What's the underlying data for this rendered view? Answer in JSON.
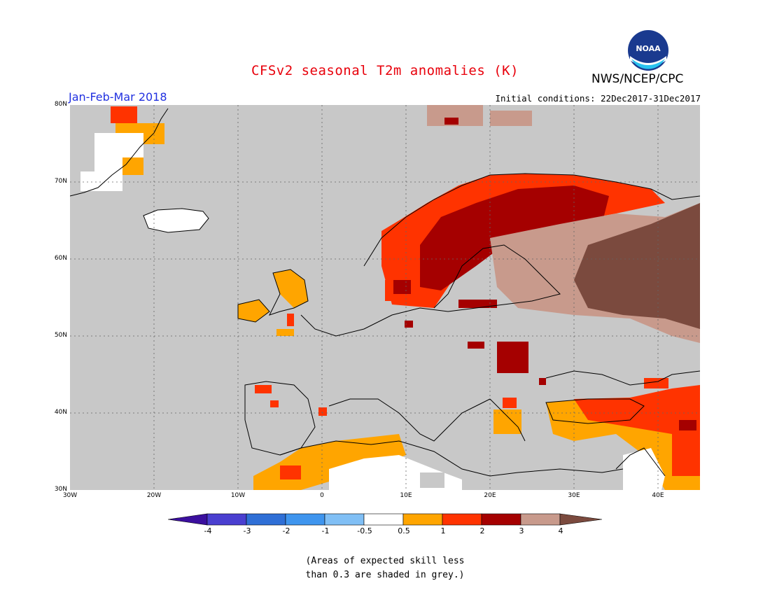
{
  "title": "CFSv2 seasonal T2m anomalies (K)",
  "organization": "NWS/NCEP/CPC",
  "logo_text": "NOAA",
  "period": "Jan-Feb-Mar 2018",
  "initial_conditions": "Initial conditions: 22Dec2017-31Dec2017",
  "lat_labels": [
    "80N",
    "70N",
    "60N",
    "50N",
    "40N",
    "30N"
  ],
  "lon_labels": [
    "30W",
    "20W",
    "10W",
    "0",
    "10E",
    "20E",
    "30E",
    "40E"
  ],
  "colorbar": {
    "labels": [
      "-4",
      "-3",
      "-2",
      "-1",
      "-0.5",
      "0.5",
      "1",
      "2",
      "3",
      "4"
    ],
    "colors": [
      "#3b0f9e",
      "#4a3fd0",
      "#2f6fd6",
      "#3f95ee",
      "#80bff5",
      "#ffffff",
      "#ffa500",
      "#ff3300",
      "#a50000",
      "#c89a8c",
      "#7b4a3e"
    ]
  },
  "note_line1": "(Areas of expected skill less",
  "note_line2": "than 0.3 are shaded in grey.)",
  "map_colors": {
    "grey": "#c8c8c8",
    "orange": "#ffa500",
    "red": "#ff3300",
    "darkred": "#a50000",
    "pink": "#c89a8c",
    "brown": "#7b4a3e",
    "white": "#ffffff"
  }
}
